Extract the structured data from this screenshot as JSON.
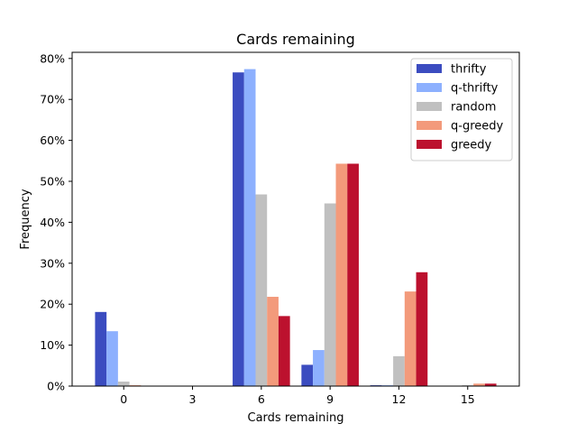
{
  "chart_data": {
    "type": "bar",
    "title": "Cards remaining",
    "xlabel": "Cards remaining",
    "ylabel": "Frequency",
    "x_ticks": [
      "0",
      "3",
      "6",
      "9",
      "12",
      "15"
    ],
    "y_ticks": [
      "0%",
      "10%",
      "20%",
      "30%",
      "40%",
      "50%",
      "60%",
      "70%",
      "80%"
    ],
    "x_positions": [
      0,
      6,
      9,
      12,
      15
    ],
    "xlim": [
      -2.25,
      17.25
    ],
    "ylim": [
      0,
      0.815
    ],
    "grid": false,
    "legend_position": "top-right",
    "series": [
      {
        "name": "thrifty",
        "color": "#3b4cc0",
        "values": [
          0.181,
          0.766,
          0.052,
          0.002,
          0.0
        ]
      },
      {
        "name": "q-thrifty",
        "color": "#8db0fe",
        "values": [
          0.134,
          0.774,
          0.088,
          0.002,
          0.0
        ]
      },
      {
        "name": "random",
        "color": "#c0c0c0",
        "values": [
          0.011,
          0.468,
          0.446,
          0.073,
          0.002
        ]
      },
      {
        "name": "q-greedy",
        "color": "#f39a7b",
        "values": [
          0.002,
          0.218,
          0.543,
          0.231,
          0.006
        ]
      },
      {
        "name": "greedy",
        "color": "#bc112e",
        "values": [
          0.0,
          0.171,
          0.543,
          0.278,
          0.006
        ]
      }
    ]
  }
}
